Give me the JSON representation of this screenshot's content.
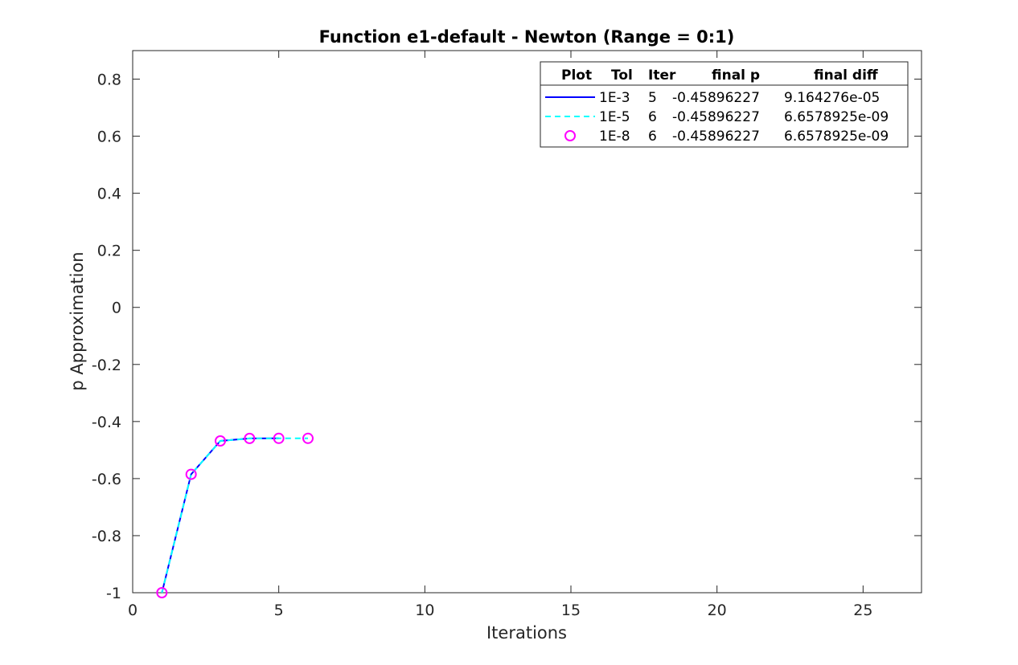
{
  "chart_data": {
    "type": "line",
    "title": "Function e1-default - Newton (Range = 0:1)",
    "xlabel": "Iterations",
    "ylabel": "p Approximation",
    "xlim": [
      0,
      27
    ],
    "ylim": [
      -1,
      0.9
    ],
    "grid": false,
    "legend_position": "top-right",
    "x_ticks": [
      "0",
      "5",
      "10",
      "15",
      "20",
      "25"
    ],
    "y_ticks": [
      "-1",
      "-0.8",
      "-0.6",
      "-0.4",
      "-0.2",
      "0",
      "0.2",
      "0.4",
      "0.6",
      "0.8"
    ],
    "legend": {
      "headers": [
        "Plot",
        "Tol",
        "Iter",
        "final p",
        "final diff"
      ],
      "rows": [
        {
          "tol": "1E-3",
          "iter": "5",
          "final_p": "-0.45896227",
          "final_diff": "9.164276e-05"
        },
        {
          "tol": "1E-5",
          "iter": "6",
          "final_p": "-0.45896227",
          "final_diff": "6.6578925e-09"
        },
        {
          "tol": "1E-8",
          "iter": "6",
          "final_p": "-0.45896227",
          "final_diff": "6.6578925e-09"
        }
      ]
    },
    "series": [
      {
        "style": "solid",
        "color": "#0000ff",
        "x": [
          1,
          2,
          3,
          4,
          5
        ],
        "y": [
          -1.0,
          -0.585,
          -0.468,
          -0.4592,
          -0.45896
        ]
      },
      {
        "style": "dashed",
        "color": "#00ffff",
        "x": [
          1,
          2,
          3,
          4,
          5,
          6
        ],
        "y": [
          -1.0,
          -0.585,
          -0.468,
          -0.4592,
          -0.45896,
          -0.45896227
        ]
      },
      {
        "style": "circle-markers",
        "color": "#ff00ff",
        "x": [
          1,
          2,
          3,
          4,
          5,
          6
        ],
        "y": [
          -1.0,
          -0.585,
          -0.468,
          -0.4592,
          -0.45896,
          -0.45896227
        ]
      }
    ]
  }
}
